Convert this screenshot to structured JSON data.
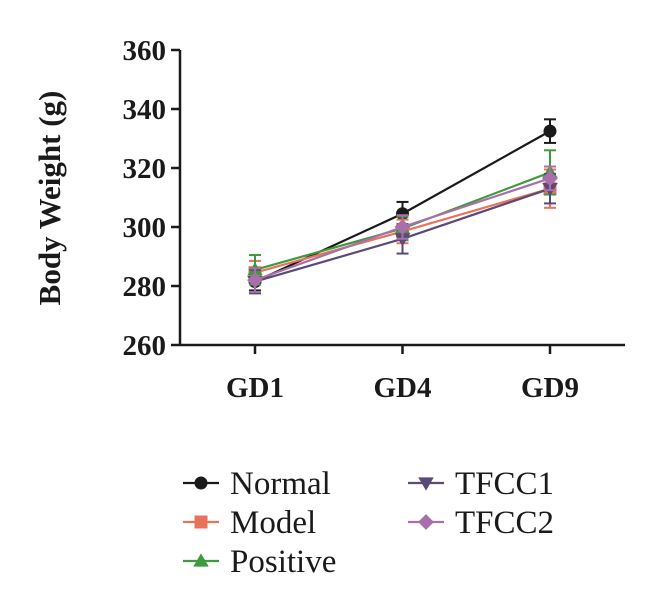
{
  "chart_data": {
    "type": "line",
    "title": "",
    "xlabel": "",
    "ylabel": "Body Weight (g)",
    "categories": [
      "GD1",
      "GD4",
      "GD9"
    ],
    "ylim": [
      260,
      360
    ],
    "yticks": [
      "260",
      "280",
      "300",
      "320",
      "340",
      "360"
    ],
    "grid": false,
    "legend_position": "bottom",
    "series": [
      {
        "name": "Normal",
        "values": [
          281.5,
          304.5,
          332.5
        ],
        "error": [
          3,
          4,
          4
        ],
        "color": "#1a1a1a",
        "marker": "circle"
      },
      {
        "name": "Model",
        "values": [
          284.5,
          298.5,
          313
        ],
        "error": [
          4,
          4,
          6.5
        ],
        "color": "#e8735a",
        "marker": "square"
      },
      {
        "name": "Positive",
        "values": [
          285.5,
          299.5,
          318.5
        ],
        "error": [
          5,
          4,
          7.5
        ],
        "color": "#3e9a3e",
        "marker": "triangle-up"
      },
      {
        "name": "TFCC1",
        "values": [
          281.5,
          296,
          313
        ],
        "error": [
          4,
          5,
          5
        ],
        "color": "#5a4a78",
        "marker": "triangle-down"
      },
      {
        "name": "TFCC2",
        "values": [
          282,
          300,
          316.5
        ],
        "error": [
          4,
          4,
          4
        ],
        "color": "#a86fa8",
        "marker": "diamond"
      }
    ]
  }
}
